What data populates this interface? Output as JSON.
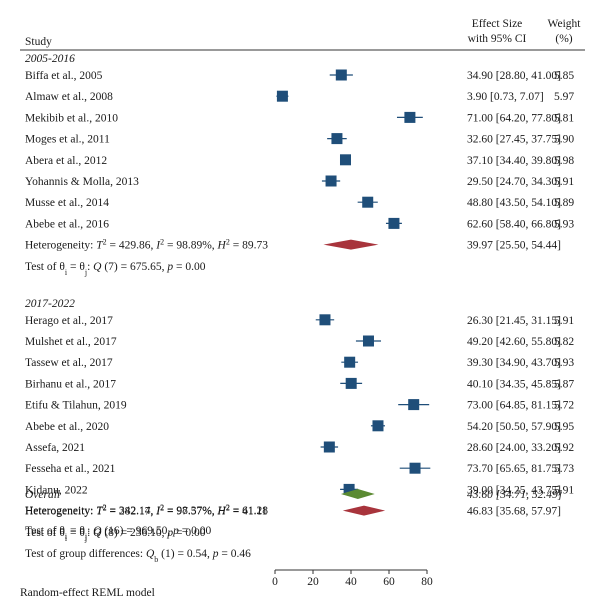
{
  "chart_data": {
    "type": "forest",
    "header": {
      "study": "Study",
      "effect_line1": "Effect Size",
      "effect_line2": "with 95% CI",
      "weight_line1": "Weight",
      "weight_line2": "(%)"
    },
    "groups": [
      {
        "name": "2005-2016",
        "studies": [
          {
            "label": "Biffa et al., 2005",
            "es": 34.9,
            "lo": 28.8,
            "hi": 41.0,
            "ci_text": "34.90 [28.80, 41.00]",
            "weight": "5.85"
          },
          {
            "label": "Almaw et al., 2008",
            "es": 3.9,
            "lo": 0.73,
            "hi": 7.07,
            "ci_text": "3.90 [0.73, 7.07]",
            "weight": "5.97"
          },
          {
            "label": "Mekibib et al., 2010",
            "es": 71.0,
            "lo": 64.2,
            "hi": 77.8,
            "ci_text": "71.00 [64.20, 77.80]",
            "weight": "5.81"
          },
          {
            "label": "Moges et al., 2011",
            "es": 32.6,
            "lo": 27.45,
            "hi": 37.75,
            "ci_text": "32.60 [27.45, 37.75]",
            "weight": "5.90"
          },
          {
            "label": "Abera et al., 2012",
            "es": 37.1,
            "lo": 34.4,
            "hi": 39.8,
            "ci_text": "37.10 [34.40, 39.80]",
            "weight": "5.98"
          },
          {
            "label": "Yohannis & Molla, 2013",
            "es": 29.5,
            "lo": 24.7,
            "hi": 34.3,
            "ci_text": "29.50 [24.70, 34.30]",
            "weight": "5.91"
          },
          {
            "label": "Musse et al., 2014",
            "es": 48.8,
            "lo": 43.5,
            "hi": 54.1,
            "ci_text": "48.80 [43.50, 54.10]",
            "weight": "5.89"
          },
          {
            "label": "Abebe et al., 2016",
            "es": 62.6,
            "lo": 58.4,
            "hi": 66.8,
            "ci_text": "62.60 [58.40, 66.80]",
            "weight": "5.93"
          }
        ],
        "pooled": {
          "es": 39.97,
          "lo": 25.5,
          "hi": 54.44,
          "ci_text": "39.97 [25.50, 54.44]",
          "color": "#a8343c"
        },
        "heterogeneity": {
          "prefix": "Heterogeneity: ",
          "tau2": "429.86",
          "i2": "98.89%",
          "h2": "89.73"
        },
        "test": {
          "prefix": "Test of ",
          "q_df": "7",
          "q": "675.65",
          "p": "0.00"
        }
      },
      {
        "name": "2017-2022",
        "studies": [
          {
            "label": "Herago et al., 2017",
            "es": 26.3,
            "lo": 21.45,
            "hi": 31.15,
            "ci_text": "26.30 [21.45, 31.15]",
            "weight": "5.91"
          },
          {
            "label": "Mulshet et al., 2017",
            "es": 49.2,
            "lo": 42.6,
            "hi": 55.8,
            "ci_text": "49.20 [42.60, 55.80]",
            "weight": "5.82"
          },
          {
            "label": "Tassew et al., 2017",
            "es": 39.3,
            "lo": 34.9,
            "hi": 43.7,
            "ci_text": "39.30 [34.90, 43.70]",
            "weight": "5.93"
          },
          {
            "label": "Birhanu et al., 2017",
            "es": 40.1,
            "lo": 34.35,
            "hi": 45.85,
            "ci_text": "40.10 [34.35, 45.85]",
            "weight": "5.87"
          },
          {
            "label": "Etifu & Tilahun, 2019",
            "es": 73.0,
            "lo": 64.85,
            "hi": 81.15,
            "ci_text": "73.00 [64.85, 81.15]",
            "weight": "5.72"
          },
          {
            "label": "Abebe et al., 2020",
            "es": 54.2,
            "lo": 50.5,
            "hi": 57.9,
            "ci_text": "54.20 [50.50, 57.90]",
            "weight": "5.95"
          },
          {
            "label": "Assefa, 2021",
            "es": 28.6,
            "lo": 24.0,
            "hi": 33.2,
            "ci_text": "28.60 [24.00, 33.20]",
            "weight": "5.92"
          },
          {
            "label": "Fesseha et al., 2021",
            "es": 73.7,
            "lo": 65.65,
            "hi": 81.75,
            "ci_text": "73.70 [65.65, 81.75]",
            "weight": "5.73"
          },
          {
            "label": "Kidanu, 2022",
            "es": 39.0,
            "lo": 34.25,
            "hi": 43.75,
            "ci_text": "39.00 [34.25, 43.75]",
            "weight": "5.91"
          }
        ],
        "pooled": {
          "es": 46.83,
          "lo": 35.68,
          "hi": 57.97,
          "ci_text": "46.83 [35.68, 57.97]",
          "color": "#a8343c"
        },
        "heterogeneity": {
          "prefix": "Heterogeneity: ",
          "tau2": "282.17",
          "i2": "97.57%",
          "h2": "41.11"
        },
        "test": {
          "prefix": "Test of ",
          "q_df": "8",
          "q": "236.10",
          "p": "0.00"
        }
      }
    ],
    "overall": {
      "label": "Overall",
      "es": 43.6,
      "lo": 34.71,
      "hi": 52.49,
      "ci_text": "43.60 [34.71, 52.49]",
      "color": "#5b8a32",
      "heterogeneity": {
        "prefix": "Heterogeneity: ",
        "tau2": "342.14",
        "i2": "98.37%",
        "h2": "61.28"
      },
      "test": {
        "prefix": "Test of ",
        "q_df": "16",
        "q": "969.50",
        "p": "0.00"
      }
    },
    "group_test": {
      "prefix": "Test of group differences: ",
      "qb_df": "1",
      "qb": "0.54",
      "p": "0.46"
    },
    "footer": "Random-effect REML model",
    "x_axis": {
      "ticks": [
        0,
        20,
        40,
        60,
        80
      ],
      "range": [
        0,
        80
      ]
    },
    "marker_color": "#1f4e79"
  }
}
